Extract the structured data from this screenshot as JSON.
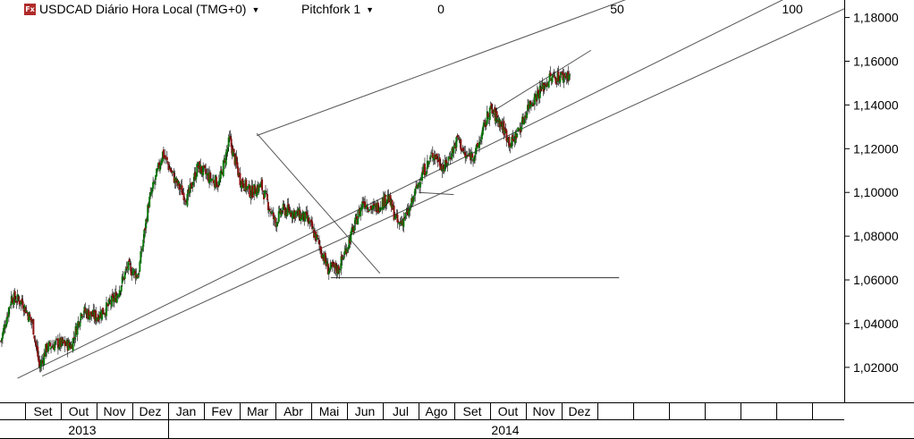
{
  "header": {
    "symbol_title": "USDCAD Diário Hora Local (TMG+0)",
    "study_label": "Pitchfork 1",
    "fx_icon": "fx-logo-icon",
    "fib_labels": [
      "0",
      "50",
      "100"
    ]
  },
  "colors": {
    "bull": "#0a7a0a",
    "bear": "#8b1010",
    "wick": "#000000",
    "lines": "#555555",
    "grid": "#000000"
  },
  "chart_data": {
    "type": "candlestick",
    "title": "USDCAD Diário Hora Local (TMG+0)",
    "y_ticks": [
      "1,02000",
      "1,04000",
      "1,06000",
      "1,08000",
      "1,10000",
      "1,12000",
      "1,14000",
      "1,16000",
      "1,18000"
    ],
    "ylim": [
      1.004,
      1.188
    ],
    "months": [
      "Set",
      "Out",
      "Nov",
      "Dez",
      "Jan",
      "Fev",
      "Mar",
      "Abr",
      "Mai",
      "Jun",
      "Jul",
      "Ago",
      "Set",
      "Out",
      "Nov",
      "Dez"
    ],
    "years": [
      "2013",
      "2014"
    ],
    "xlim": [
      0,
      24
    ],
    "series": [
      {
        "x": [
          0,
          0.3,
          0.6,
          0.9,
          1.1,
          1.3,
          1.6,
          2.0,
          2.3,
          2.7,
          3.0,
          3.3,
          3.6,
          3.9,
          4.2,
          4.6,
          5.0,
          5.3,
          5.6,
          5.9,
          6.2,
          6.5,
          6.8,
          7.1,
          7.4,
          7.8,
          8.0,
          8.3,
          8.7,
          9.0,
          9.3,
          9.6,
          9.9,
          10.3,
          10.6,
          11.0,
          11.3,
          11.6,
          11.9,
          12.3,
          12.6,
          13.0,
          13.2,
          13.5,
          13.9,
          14.2,
          14.5,
          14.8,
          15.0,
          15.3,
          15.6,
          15.9,
          16.2
        ],
        "y": [
          1.032,
          1.052,
          1.05,
          1.04,
          1.02,
          1.029,
          1.031,
          1.03,
          1.046,
          1.043,
          1.047,
          1.053,
          1.066,
          1.062,
          1.095,
          1.118,
          1.104,
          1.097,
          1.112,
          1.107,
          1.104,
          1.124,
          1.106,
          1.1,
          1.103,
          1.086,
          1.092,
          1.091,
          1.088,
          1.078,
          1.065,
          1.065,
          1.078,
          1.096,
          1.092,
          1.098,
          1.085,
          1.091,
          1.106,
          1.118,
          1.111,
          1.125,
          1.116,
          1.118,
          1.138,
          1.132,
          1.122,
          1.131,
          1.14,
          1.146,
          1.152,
          1.153,
          1.154
        ]
      }
    ],
    "annotations": [
      {
        "type": "pitchfork-median",
        "from": [
          0.5,
          1.015
        ],
        "to": [
          24,
          1.202
        ]
      },
      {
        "type": "pitchfork-upper",
        "from": [
          7.3,
          1.126
        ],
        "to": [
          24,
          1.225
        ]
      },
      {
        "type": "pitchfork-lower",
        "from": [
          1.2,
          1.016
        ],
        "to": [
          24,
          1.184
        ]
      },
      {
        "type": "pitchfork-handle",
        "from": [
          7.3,
          1.127
        ],
        "to": [
          10.8,
          1.063
        ]
      },
      {
        "type": "channel-line",
        "from": [
          14.0,
          1.137
        ],
        "to": [
          16.8,
          1.165
        ]
      },
      {
        "type": "resistance",
        "from": [
          11.9,
          1.1
        ],
        "to": [
          12.9,
          1.099
        ]
      },
      {
        "type": "support",
        "from": [
          9.4,
          1.061
        ],
        "to": [
          17.6,
          1.061
        ]
      }
    ]
  }
}
